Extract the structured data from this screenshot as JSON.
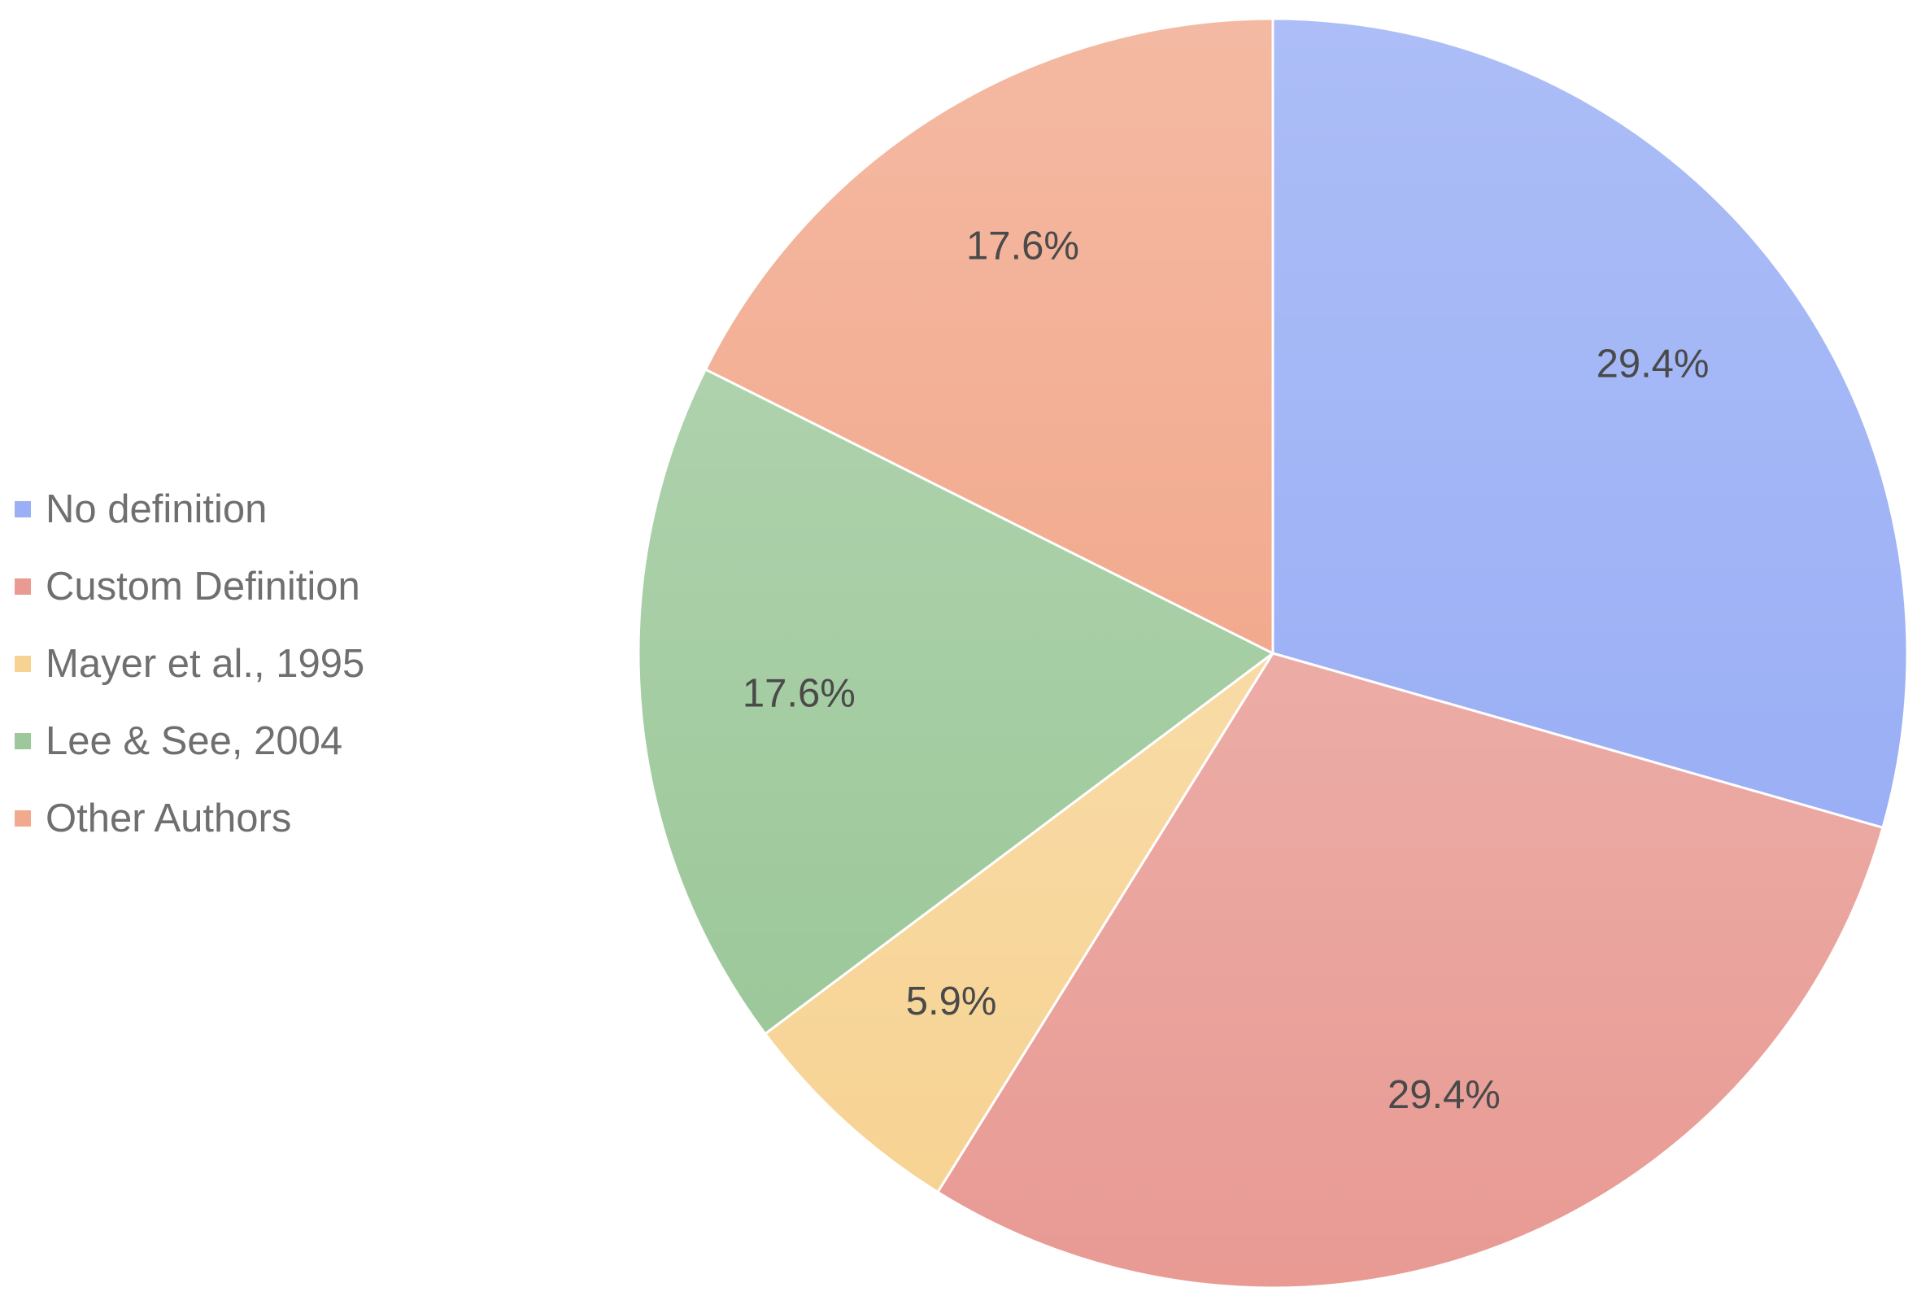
{
  "chart_data": {
    "type": "pie",
    "categories": [
      "No definition",
      "Custom Definition",
      "Mayer et al., 1995",
      "Lee & See, 2004",
      "Other Authors"
    ],
    "values": [
      29.4,
      29.4,
      5.9,
      17.6,
      17.6
    ],
    "labels": [
      "29.4%",
      "29.4%",
      "5.9%",
      "17.6%",
      "17.6%"
    ],
    "colors": [
      "#9aaff5",
      "#e89a93",
      "#f7d393",
      "#9cc89a",
      "#f2aa8e"
    ],
    "legend_position": "left",
    "start": "top, clockwise"
  }
}
